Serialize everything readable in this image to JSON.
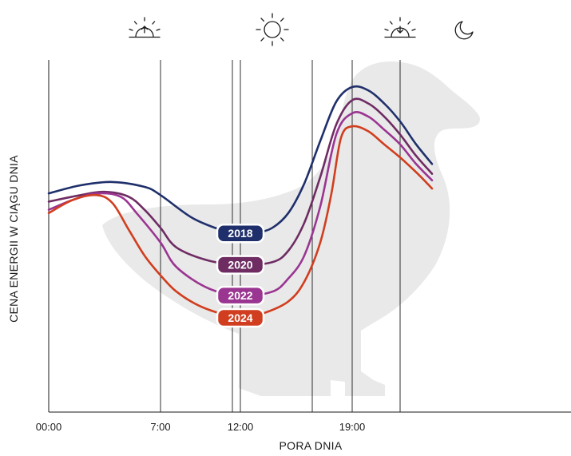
{
  "chart_data": {
    "type": "line",
    "xlabel": "PORA DNIA",
    "ylabel": "CENA ENERGII W CIĄGU DNIA",
    "x_ticks": [
      "00:00",
      "7:00",
      "12:00",
      "19:00"
    ],
    "xlim": [
      0,
      24
    ],
    "ylim": [
      0,
      100
    ],
    "grid_hours": [
      7,
      11.5,
      16.5,
      22
    ],
    "axis_hours": [
      0,
      12,
      19
    ],
    "background_silhouette": "duck",
    "icons": [
      {
        "name": "sunrise-icon",
        "hour": 7
      },
      {
        "name": "sun-icon",
        "hour": 12
      },
      {
        "name": "sunset-icon",
        "hour": 19
      },
      {
        "name": "moon-icon",
        "hour": 22
      }
    ],
    "series": [
      {
        "name": "2018",
        "color": "#1f2f6b",
        "label_hour": 12,
        "points": [
          [
            0,
            58
          ],
          [
            2,
            60.5
          ],
          [
            4,
            61.5
          ],
          [
            6,
            60
          ],
          [
            7,
            57.5
          ],
          [
            9,
            50.5
          ],
          [
            11,
            46.5
          ],
          [
            12,
            45.8
          ],
          [
            13,
            46
          ],
          [
            14,
            47.5
          ],
          [
            15,
            52
          ],
          [
            16,
            61
          ],
          [
            17,
            74
          ],
          [
            18,
            86
          ],
          [
            19,
            90.5
          ],
          [
            20,
            89.5
          ],
          [
            21,
            85.5
          ],
          [
            22,
            80
          ],
          [
            23,
            73
          ],
          [
            24,
            67
          ]
        ]
      },
      {
        "name": "2020",
        "color": "#6e2c63",
        "label_hour": 12,
        "points": [
          [
            0,
            55.5
          ],
          [
            2,
            57.5
          ],
          [
            3.5,
            58.5
          ],
          [
            5,
            57
          ],
          [
            6,
            53
          ],
          [
            7,
            47.5
          ],
          [
            8,
            41.5
          ],
          [
            10,
            37.5
          ],
          [
            12,
            36.2
          ],
          [
            14,
            37
          ],
          [
            15,
            40.5
          ],
          [
            16,
            49
          ],
          [
            17,
            63
          ],
          [
            18,
            79
          ],
          [
            19,
            86.5
          ],
          [
            20,
            85.5
          ],
          [
            21,
            81.5
          ],
          [
            22,
            76
          ],
          [
            23,
            69.5
          ],
          [
            24,
            64
          ]
        ]
      },
      {
        "name": "2022",
        "color": "#9a3591",
        "label_hour": 12,
        "points": [
          [
            0,
            53
          ],
          [
            1.5,
            56
          ],
          [
            3,
            58
          ],
          [
            4.5,
            57
          ],
          [
            5.5,
            52
          ],
          [
            7,
            43
          ],
          [
            8,
            35.5
          ],
          [
            10,
            29
          ],
          [
            12,
            26.8
          ],
          [
            14,
            28
          ],
          [
            15,
            32
          ],
          [
            16,
            39
          ],
          [
            17,
            54
          ],
          [
            18,
            76
          ],
          [
            19,
            82.5
          ],
          [
            20,
            81.5
          ],
          [
            21,
            77.5
          ],
          [
            22,
            73
          ],
          [
            23,
            67
          ],
          [
            24,
            62
          ]
        ]
      },
      {
        "name": "2024",
        "color": "#d03e1f",
        "label_hour": 12,
        "points": [
          [
            0,
            52
          ],
          [
            1.5,
            56
          ],
          [
            3,
            57.5
          ],
          [
            4,
            55
          ],
          [
            5,
            47
          ],
          [
            6,
            39
          ],
          [
            7,
            33
          ],
          [
            8,
            28
          ],
          [
            9.5,
            23.5
          ],
          [
            11.5,
            20.2
          ],
          [
            12,
            20
          ],
          [
            13.5,
            21.5
          ],
          [
            15,
            25
          ],
          [
            16,
            31
          ],
          [
            17,
            43
          ],
          [
            17.7,
            58
          ],
          [
            18.3,
            75
          ],
          [
            19,
            78.5
          ],
          [
            20,
            77
          ],
          [
            21,
            73
          ],
          [
            22,
            69
          ],
          [
            23,
            64.5
          ],
          [
            24,
            59.5
          ]
        ]
      }
    ]
  }
}
